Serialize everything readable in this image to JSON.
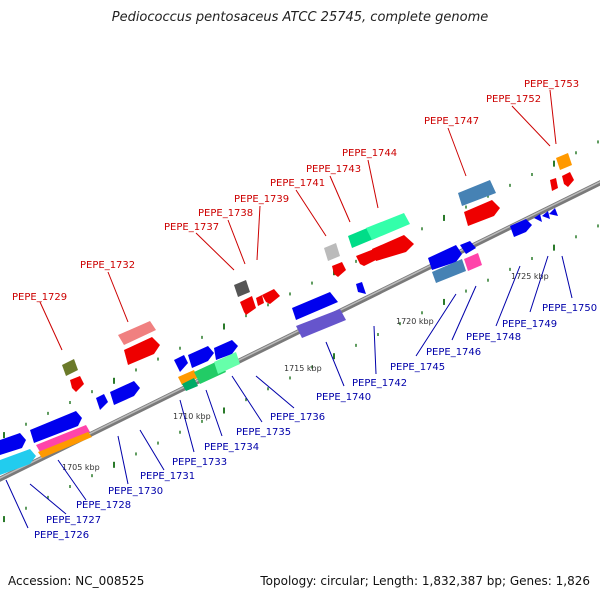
{
  "title": "Pediococcus pentosaceus ATCC 25745, complete genome",
  "footer": {
    "accession": "Accession: NC_008525",
    "summary": "Topology: circular; Length: 1,832,387 bp; Genes: 1,826"
  },
  "colors": {
    "backbone": "#888888",
    "label_top": "#cc0000",
    "label_bottom": "#0000aa",
    "tick": "#2a7a2a"
  },
  "scale_labels": [
    "1705 kbp",
    "1710 kbp",
    "1715 kbp",
    "1720 kbp",
    "1725 kbp"
  ],
  "labels_top": [
    "PEPE_1729",
    "PEPE_1732",
    "PEPE_1737",
    "PEPE_1738",
    "PEPE_1739",
    "PEPE_1741",
    "PEPE_1743",
    "PEPE_1744",
    "PEPE_1747",
    "PEPE_1752",
    "PEPE_1753"
  ],
  "labels_bottom": [
    "PEPE_1726",
    "PEPE_1727",
    "PEPE_1728",
    "PEPE_1730",
    "PEPE_1731",
    "PEPE_1733",
    "PEPE_1734",
    "PEPE_1735",
    "PEPE_1736",
    "PEPE_1740",
    "PEPE_1742",
    "PEPE_1745",
    "PEPE_1746",
    "PEPE_1748",
    "PEPE_1749",
    "PEPE_1750"
  ]
}
